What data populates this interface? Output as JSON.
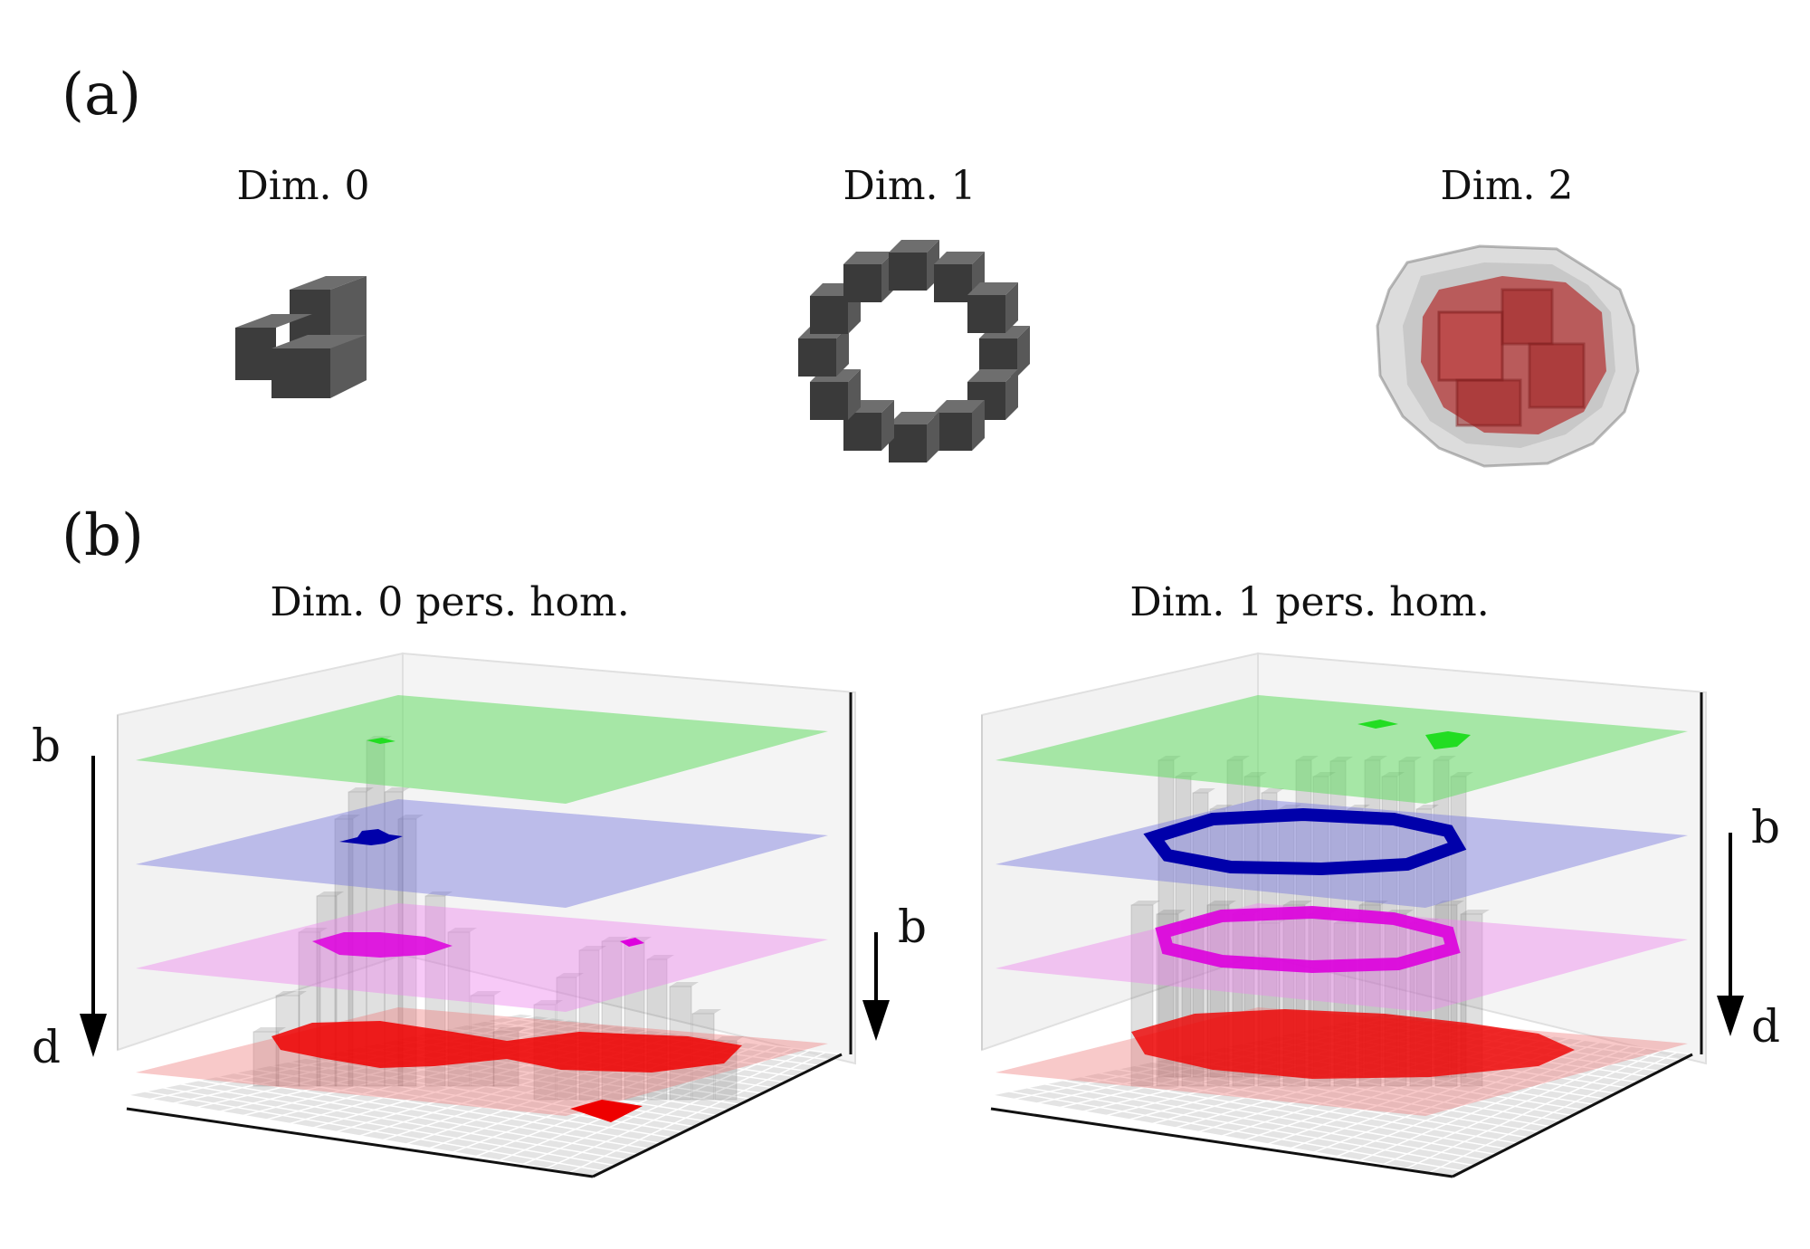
{
  "panel_a": {
    "label": "(a)",
    "titles": [
      "Dim. 0",
      "Dim. 1",
      "Dim. 2"
    ]
  },
  "panel_b": {
    "label": "(b)",
    "left_title": "Dim. 0 pers. hom.",
    "right_title": "Dim. 1 pers. hom.",
    "left_arrow_long": {
      "start": "b",
      "end": "d"
    },
    "left_arrow_short": {
      "start": "b"
    },
    "right_arrow": {
      "start": "b",
      "end": "d"
    }
  },
  "colors": {
    "voxel_dark": "#4a4a4a",
    "level_green": "#66dd66",
    "level_blue": "#7777dd",
    "level_magenta": "#ee88ee",
    "level_red": "#ee7777",
    "highlight_green": "#22dd22",
    "highlight_blue": "#0000aa",
    "highlight_magenta": "#dd00dd",
    "highlight_red": "#ee0000"
  }
}
